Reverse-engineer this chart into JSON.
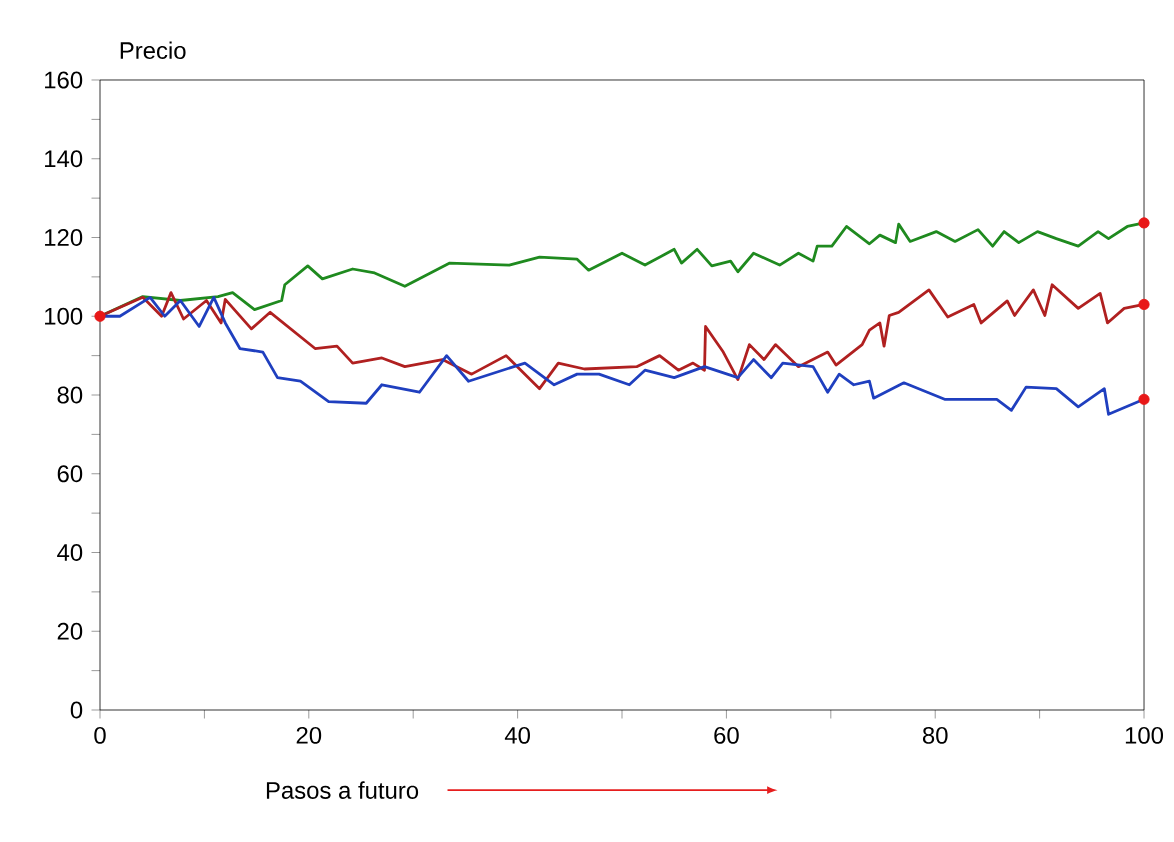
{
  "chart_data": {
    "type": "line",
    "ylabel": "Precio",
    "xlabel": "Pasos a futuro",
    "xlim": [
      0,
      100
    ],
    "ylim": [
      0,
      160
    ],
    "xticks": [
      0,
      {
        "value": 10,
        "label": null
      },
      20,
      {
        "value": 30,
        "label": null
      },
      40,
      {
        "value": 50,
        "label": null
      },
      60,
      {
        "value": 70,
        "label": null
      },
      80,
      {
        "value": 90,
        "label": null
      },
      100
    ],
    "yticks": [
      0,
      {
        "value": 10,
        "label": null
      },
      20,
      {
        "value": 30,
        "label": null
      },
      40,
      {
        "value": 50,
        "label": null
      },
      60,
      {
        "value": 70,
        "label": null
      },
      80,
      {
        "value": 90,
        "label": null
      },
      100,
      {
        "value": 110,
        "label": null
      },
      120,
      {
        "value": 130,
        "label": null
      },
      140,
      {
        "value": 150,
        "label": null
      },
      160
    ],
    "grid": false,
    "line_style": "solid",
    "series": [
      {
        "color": "#1f8a1f",
        "x": [
          0,
          4.1,
          7.7,
          11.3,
          12.7,
          14.8,
          17.4,
          17.7,
          19.9,
          21.3,
          24.2,
          26.3,
          29.2,
          33.5,
          39.2,
          42.1,
          45.7,
          46.8,
          50,
          52.2,
          55,
          55.7,
          57.2,
          58.6,
          60.4,
          61.1,
          62.6,
          65.1,
          66.9,
          68.3,
          68.7,
          70.1,
          71.5,
          73.7,
          74.7,
          76.2,
          76.5,
          77.6,
          80.1,
          81.9,
          84.1,
          85.5,
          86.6,
          88,
          89.8,
          91.6,
          93.7,
          95.6,
          96.6,
          98.4,
          100
        ],
        "values": [
          100,
          105,
          104,
          105,
          106,
          101.7,
          104,
          108,
          112.8,
          109.5,
          112,
          111,
          107.6,
          113.5,
          113,
          115,
          114.5,
          111.7,
          116,
          113,
          117,
          113.5,
          117,
          112.8,
          114,
          111.3,
          116,
          113,
          116,
          114,
          117.8,
          117.8,
          122.8,
          118.4,
          120.6,
          118.7,
          123.4,
          119,
          121.5,
          119,
          122,
          117.8,
          121.5,
          118.7,
          121.5,
          119.7,
          117.8,
          121.5,
          119.7,
          122.8,
          123.7
        ]
      },
      {
        "color": "#b02020",
        "x": [
          0,
          4.1,
          5.9,
          6.8,
          8.0,
          10.2,
          11.6,
          12,
          14.5,
          16.3,
          20.6,
          22.7,
          24.2,
          27.0,
          29.2,
          32.8,
          35.6,
          38.9,
          42.1,
          43.9,
          46.4,
          51.4,
          53.6,
          55.4,
          56.8,
          57.9,
          58,
          59.7,
          61.1,
          62.2,
          63.6,
          64.7,
          66.9,
          69.7,
          70.5,
          73,
          73.7,
          74.7,
          75.1,
          75.6,
          76.5,
          79.4,
          81.2,
          83.7,
          84.4,
          86.9,
          87.6,
          89.4,
          90.5,
          91.2,
          93.7,
          95.8,
          96.5,
          98.1,
          100
        ],
        "values": [
          100,
          104.8,
          100,
          106,
          99.3,
          104,
          98.3,
          104.3,
          96.8,
          101,
          91.8,
          92.4,
          88.1,
          89.4,
          87.2,
          89,
          85.3,
          90,
          81.6,
          88.1,
          86.6,
          87.2,
          90,
          86.3,
          88.1,
          86.3,
          97.4,
          90.9,
          83.9,
          92.8,
          89,
          92.8,
          87.2,
          90.9,
          87.6,
          92.8,
          96.5,
          98.3,
          92.4,
          100.2,
          101,
          106.7,
          99.8,
          103,
          98.3,
          103.9,
          100.2,
          106.7,
          100.2,
          108,
          102,
          105.8,
          98.3,
          102,
          103
        ]
      },
      {
        "color": "#1f3fbf",
        "x": [
          0,
          1.9,
          4.8,
          6.2,
          7.7,
          9.5,
          10.9,
          12,
          13.4,
          15.6,
          17,
          19.2,
          21.9,
          25.5,
          27,
          30.6,
          33.2,
          35.3,
          40.7,
          43.5,
          45.7,
          47.8,
          50.7,
          52.2,
          55,
          57.9,
          61.1,
          62.6,
          64.3,
          65.4,
          68.3,
          69.7,
          70.8,
          72.2,
          73.7,
          74.1,
          77,
          80.9,
          85.9,
          87.3,
          88.7,
          91.6,
          93.7,
          96.2,
          96.6,
          100
        ],
        "values": [
          100,
          100,
          104.8,
          100,
          104,
          97.4,
          104.8,
          98.3,
          91.8,
          90.9,
          84.4,
          83.5,
          78.3,
          77.9,
          82.6,
          80.7,
          90,
          83.5,
          88.1,
          82.6,
          85.3,
          85.3,
          82.6,
          86.3,
          84.4,
          87.2,
          84.4,
          89,
          84.4,
          88.1,
          87.2,
          80.7,
          85.3,
          82.6,
          83.5,
          79.2,
          83.1,
          78.9,
          78.9,
          76.1,
          82,
          81.6,
          77,
          81.6,
          75.1,
          78.9
        ]
      },
      {
        "type": "scatter",
        "color": "#e81818",
        "x": [
          0,
          100,
          100,
          100
        ],
        "values": [
          100,
          123.7,
          103,
          78.9
        ]
      }
    ]
  }
}
